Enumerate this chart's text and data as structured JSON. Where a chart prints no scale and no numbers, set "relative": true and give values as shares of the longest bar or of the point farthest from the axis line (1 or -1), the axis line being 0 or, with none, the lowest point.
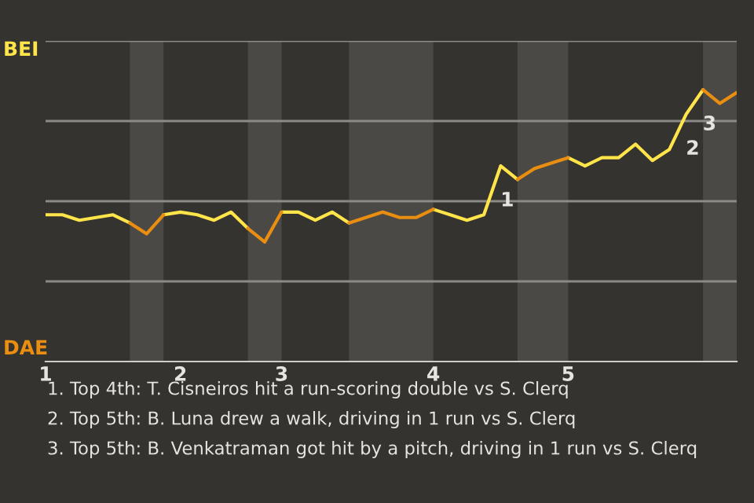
{
  "chart_data": {
    "type": "line",
    "relative": true,
    "categories": [
      "1",
      null,
      null,
      null,
      null,
      null,
      null,
      null,
      "2",
      null,
      null,
      null,
      null,
      null,
      "3",
      null,
      null,
      null,
      null,
      null,
      null,
      null,
      null,
      "4",
      null,
      null,
      null,
      null,
      null,
      null,
      null,
      "5",
      null,
      null,
      null,
      null,
      null,
      null,
      null,
      null,
      null,
      null
    ],
    "series": [
      {
        "color": "#ffe44a",
        "values": [
          0.54,
          0.54,
          0.52,
          0.53,
          0.54,
          0.51,
          null,
          0.54,
          0.55,
          0.54,
          0.52,
          0.55,
          0.49,
          null,
          0.55,
          0.55,
          0.52,
          0.55,
          0.51,
          null,
          null,
          null,
          null,
          0.56,
          0.54,
          0.52,
          0.54,
          0.72,
          0.67,
          null,
          null,
          0.75,
          0.72,
          0.75,
          0.75,
          0.8,
          0.74,
          0.78,
          0.91,
          1,
          null,
          null
        ]
      },
      {
        "color": "#e98e10",
        "values": [
          null,
          null,
          null,
          null,
          null,
          0.51,
          0.47,
          0.54,
          null,
          null,
          null,
          null,
          0.49,
          0.44,
          0.55,
          null,
          null,
          null,
          0.51,
          0.53,
          0.55,
          0.53,
          0.53,
          0.56,
          null,
          null,
          null,
          null,
          0.67,
          0.71,
          0.73,
          0.75,
          null,
          null,
          null,
          null,
          null,
          null,
          null,
          1,
          0.95,
          0.99
        ]
      }
    ],
    "grid": "y",
    "annotations": [
      "BEI",
      "DAE",
      {
        "text": "1",
        "y": 0.72
      },
      {
        "text": "2",
        "y": 0.91
      },
      {
        "text": "3",
        "y": 1
      },
      "1. Top 4th: T. Cisneiros hit a run-scoring double vs S. Clerq",
      "2. Top 5th: B. Luna drew a walk, driving in 1 run vs S. Clerq",
      "3. Top 5th: B. Venkatraman got hit by a pitch, driving in 1 run vs S. Clerq"
    ]
  }
}
